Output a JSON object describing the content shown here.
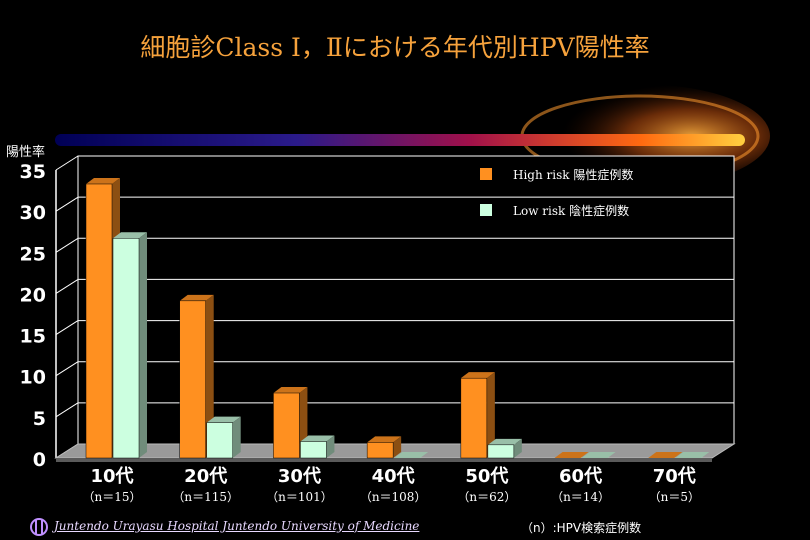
{
  "chart_data": {
    "type": "bar",
    "title": "細胞診Class Ⅰ，Ⅱにおける年代別HPV陽性率",
    "ylabel": "陽性率",
    "ylim": [
      0,
      35
    ],
    "yticks": [
      0,
      5,
      10,
      15,
      20,
      25,
      30,
      35
    ],
    "categories": [
      "10代",
      "20代",
      "30代",
      "40代",
      "50代",
      "60代",
      "70代"
    ],
    "sample_sizes": [
      "（n＝15）",
      "（n＝115）",
      "（n＝101）",
      "（n＝108）",
      "（n＝62）",
      "（n＝14）",
      "（n＝5）"
    ],
    "series": [
      {
        "name": "High  risk  陽性症例数",
        "color": "#ff9020",
        "values": [
          33.3,
          19.1,
          7.9,
          1.9,
          9.7,
          0,
          0
        ]
      },
      {
        "name": "Low  risk  陰性症例数",
        "color": "#ccffe0",
        "values": [
          26.7,
          4.3,
          2.0,
          0,
          1.6,
          0,
          0
        ]
      }
    ],
    "grid": true,
    "legend_position": "top-right"
  },
  "footer": {
    "institution": "Juntendo Urayasu Hospital Juntendo University of Medicine",
    "note": "（n）:HPV検索症例数"
  }
}
